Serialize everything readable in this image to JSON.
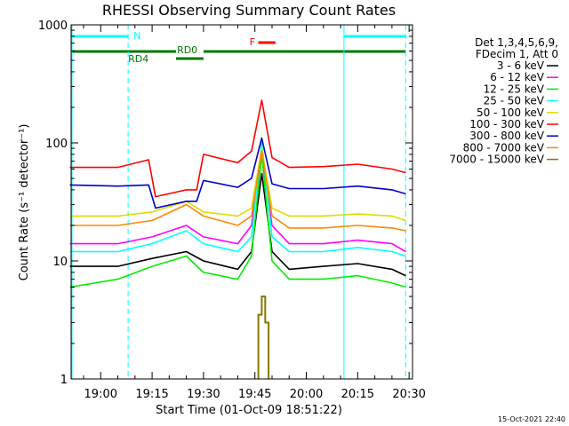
{
  "chart_data": {
    "type": "line",
    "title": "RHESSI Observing Summary Count Rates",
    "xlabel": "Start Time (01-Oct-09 18:51:22)",
    "ylabel": "Count Rate (s⁻¹ detector⁻¹)",
    "x_scale": "time",
    "y_scale": "log",
    "xlim": [
      "18:51:22",
      "20:31:00"
    ],
    "ylim": [
      1,
      1000
    ],
    "x_ticks": [
      "19:00",
      "19:15",
      "19:30",
      "19:45",
      "20:00",
      "20:15",
      "20:30"
    ],
    "y_ticks": [
      "1",
      "10",
      "100",
      "1000"
    ],
    "grid": false,
    "legend": {
      "placement": "right",
      "header": [
        "Det 1,3,4,5,6,9,",
        "FDecim 1, Att 0"
      ]
    },
    "series": [
      {
        "name": "3 - 6 keV",
        "color": "#000000",
        "x": [
          "18:51",
          "19:05",
          "19:15",
          "19:25",
          "19:30",
          "19:40",
          "19:44",
          "19:47",
          "19:50",
          "19:55",
          "20:05",
          "20:15",
          "20:25",
          "20:29"
        ],
        "y": [
          9,
          9,
          10.5,
          12,
          10,
          8.5,
          12,
          55,
          12,
          8.5,
          9,
          9.5,
          8.5,
          7.5
        ]
      },
      {
        "name": "6 - 12 keV",
        "color": "#ff00ff",
        "x": [
          "18:51",
          "19:05",
          "19:15",
          "19:25",
          "19:30",
          "19:40",
          "19:44",
          "19:47",
          "19:50",
          "19:55",
          "20:05",
          "20:15",
          "20:25",
          "20:29"
        ],
        "y": [
          14,
          14,
          16,
          20,
          16,
          14,
          20,
          80,
          20,
          14,
          14,
          15,
          14,
          12
        ]
      },
      {
        "name": "12 - 25 keV",
        "color": "#00ee00",
        "x": [
          "18:51",
          "19:05",
          "19:15",
          "19:25",
          "19:30",
          "19:40",
          "19:44",
          "19:47",
          "19:50",
          "19:55",
          "20:05",
          "20:15",
          "20:25",
          "20:29"
        ],
        "y": [
          6,
          7,
          9,
          11,
          8,
          7,
          11,
          80,
          10,
          7,
          7,
          7.5,
          6.5,
          6
        ]
      },
      {
        "name": "25 - 50 keV",
        "color": "#00ffff",
        "x": [
          "18:51",
          "19:05",
          "19:15",
          "19:25",
          "19:30",
          "19:40",
          "19:44",
          "19:47",
          "19:50",
          "19:55",
          "20:05",
          "20:15",
          "20:25",
          "20:29"
        ],
        "y": [
          12,
          12,
          14,
          18,
          14,
          12,
          16,
          100,
          16,
          12,
          12,
          13,
          12,
          11
        ]
      },
      {
        "name": "50 - 100 keV",
        "color": "#dddd00",
        "x": [
          "18:51",
          "19:05",
          "19:15",
          "19:25",
          "19:30",
          "19:40",
          "19:44",
          "19:47",
          "19:50",
          "19:55",
          "20:05",
          "20:15",
          "20:25",
          "20:29"
        ],
        "y": [
          24,
          24,
          26,
          32,
          26,
          24,
          28,
          90,
          28,
          24,
          24,
          25,
          24,
          22
        ]
      },
      {
        "name": "100 - 300 keV",
        "color": "#ff0000",
        "x": [
          "18:51",
          "19:05",
          "19:14",
          "19:16",
          "19:25",
          "19:28",
          "19:30",
          "19:40",
          "19:44",
          "19:47",
          "19:50",
          "19:55",
          "20:05",
          "20:15",
          "20:25",
          "20:29"
        ],
        "y": [
          62,
          62,
          72,
          35,
          40,
          40,
          80,
          68,
          85,
          230,
          75,
          62,
          63,
          66,
          60,
          56
        ]
      },
      {
        "name": "300 - 800 keV",
        "color": "#0000cc",
        "x": [
          "18:51",
          "19:05",
          "19:14",
          "19:16",
          "19:25",
          "19:28",
          "19:30",
          "19:40",
          "19:44",
          "19:47",
          "19:50",
          "19:55",
          "20:05",
          "20:15",
          "20:25",
          "20:29"
        ],
        "y": [
          44,
          43,
          44,
          28,
          32,
          32,
          48,
          42,
          50,
          110,
          45,
          41,
          41,
          43,
          40,
          37
        ]
      },
      {
        "name": "800 - 7000 keV",
        "color": "#ff8800",
        "x": [
          "18:51",
          "19:05",
          "19:15",
          "19:25",
          "19:30",
          "19:40",
          "19:44",
          "19:47",
          "19:50",
          "19:55",
          "20:05",
          "20:15",
          "20:25",
          "20:29"
        ],
        "y": [
          20,
          20,
          22,
          30,
          24,
          20,
          24,
          85,
          24,
          19,
          19,
          20,
          19,
          18
        ]
      },
      {
        "name": "7000 - 15000 keV",
        "color": "#887700",
        "x": [
          "19:46",
          "19:46",
          "19:47",
          "19:47",
          "19:48",
          "19:48",
          "19:49",
          "19:49"
        ],
        "y": [
          1,
          3.5,
          3.5,
          5,
          5,
          3,
          3,
          1
        ]
      }
    ],
    "annotations": [
      {
        "label": "N",
        "x": [
          "18:51",
          "19:08"
        ],
        "color": "#00ffff"
      },
      {
        "label": "",
        "x": [
          "20:11",
          "20:29"
        ],
        "color": "#00ffff"
      },
      {
        "label": "RD0",
        "x": [
          "19:22",
          "19:30"
        ],
        "color": "#007700"
      },
      {
        "label": "RD4",
        "x": [
          "18:51",
          "19:22"
        ],
        "color": "#007700"
      },
      {
        "label": "",
        "x": [
          "19:30",
          "20:29"
        ],
        "color": "#007700"
      },
      {
        "label": "F",
        "x": [
          "19:46",
          "19:51"
        ],
        "color": "#ff0000"
      }
    ]
  },
  "footer": {
    "timestamp": "15-Oct-2021 22:40"
  }
}
